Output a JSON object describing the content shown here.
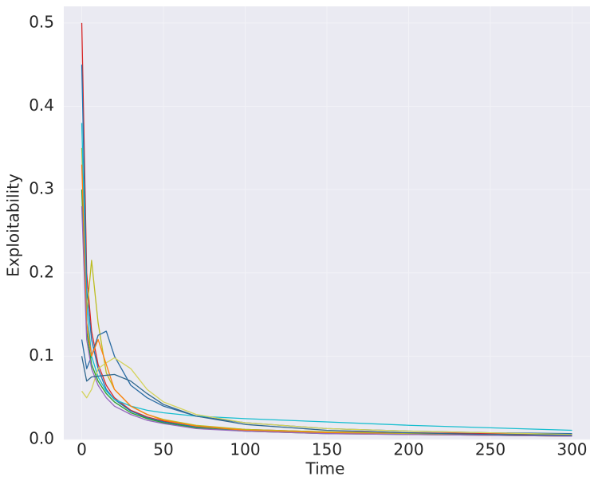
{
  "chart_data": {
    "type": "line",
    "xlabel": "Time",
    "ylabel": "Exploitability",
    "x": [
      0,
      3,
      6,
      10,
      15,
      20,
      30,
      40,
      50,
      70,
      100,
      150,
      200,
      250,
      300
    ],
    "series": [
      {
        "color": "#d62728",
        "values": [
          0.5,
          0.2,
          0.13,
          0.09,
          0.065,
          0.05,
          0.035,
          0.027,
          0.022,
          0.016,
          0.012,
          0.009,
          0.008,
          0.007,
          0.006
        ]
      },
      {
        "color": "#1f77b4",
        "values": [
          0.45,
          0.18,
          0.12,
          0.085,
          0.06,
          0.048,
          0.034,
          0.026,
          0.021,
          0.015,
          0.011,
          0.008,
          0.007,
          0.006,
          0.005
        ]
      },
      {
        "color": "#bcbd22",
        "values": [
          0.35,
          0.15,
          0.215,
          0.14,
          0.08,
          0.06,
          0.04,
          0.03,
          0.024,
          0.017,
          0.012,
          0.009,
          0.007,
          0.006,
          0.005
        ]
      },
      {
        "color": "#2b6ca3",
        "values": [
          0.12,
          0.085,
          0.1,
          0.125,
          0.13,
          0.1,
          0.065,
          0.05,
          0.04,
          0.028,
          0.02,
          0.013,
          0.01,
          0.008,
          0.007
        ]
      },
      {
        "color": "#17becf",
        "values": [
          0.38,
          0.16,
          0.1,
          0.075,
          0.058,
          0.048,
          0.04,
          0.035,
          0.032,
          0.028,
          0.025,
          0.021,
          0.017,
          0.014,
          0.011
        ]
      },
      {
        "color": "#d4d35a",
        "values": [
          0.058,
          0.05,
          0.06,
          0.085,
          0.092,
          0.098,
          0.085,
          0.06,
          0.045,
          0.03,
          0.02,
          0.013,
          0.01,
          0.008,
          0.006
        ]
      },
      {
        "color": "#2ca02c",
        "values": [
          0.3,
          0.13,
          0.09,
          0.07,
          0.055,
          0.045,
          0.032,
          0.025,
          0.02,
          0.014,
          0.01,
          0.007,
          0.006,
          0.005,
          0.004
        ]
      },
      {
        "color": "#ff7f0e",
        "values": [
          0.33,
          0.14,
          0.1,
          0.12,
          0.09,
          0.06,
          0.04,
          0.03,
          0.023,
          0.016,
          0.011,
          0.008,
          0.006,
          0.005,
          0.004
        ]
      },
      {
        "color": "#9467bd",
        "values": [
          0.28,
          0.12,
          0.085,
          0.065,
          0.05,
          0.04,
          0.03,
          0.023,
          0.019,
          0.013,
          0.01,
          0.007,
          0.006,
          0.005,
          0.004
        ]
      },
      {
        "color": "#31688e",
        "values": [
          0.1,
          0.07,
          0.075,
          0.076,
          0.077,
          0.078,
          0.07,
          0.055,
          0.042,
          0.028,
          0.018,
          0.011,
          0.008,
          0.006,
          0.005
        ]
      }
    ],
    "xlim": [
      -11,
      311
    ],
    "ylim": [
      0,
      0.52
    ],
    "xticks": [
      0,
      50,
      100,
      150,
      200,
      250,
      300
    ],
    "yticks": [
      {
        "value": 0,
        "label": "0.0"
      },
      0.1,
      0.2,
      0.3,
      0.4,
      0.5
    ],
    "grid": true
  }
}
